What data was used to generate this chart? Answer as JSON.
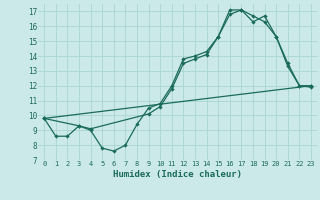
{
  "title": "",
  "xlabel": "Humidex (Indice chaleur)",
  "ylabel": "",
  "bg_color": "#cce9e9",
  "grid_color": "#aad4d4",
  "line_color": "#1a6b5a",
  "xlim": [
    -0.5,
    23.5
  ],
  "ylim": [
    7,
    17.5
  ],
  "yticks": [
    7,
    8,
    9,
    10,
    11,
    12,
    13,
    14,
    15,
    16,
    17
  ],
  "xticks": [
    0,
    1,
    2,
    3,
    4,
    5,
    6,
    7,
    8,
    9,
    10,
    11,
    12,
    13,
    14,
    15,
    16,
    17,
    18,
    19,
    20,
    21,
    22,
    23
  ],
  "line1_x": [
    0,
    1,
    2,
    3,
    4,
    5,
    6,
    7,
    8,
    9,
    10,
    11,
    12,
    13,
    14,
    15,
    16,
    17,
    18,
    19,
    20,
    21,
    22,
    23
  ],
  "line1_y": [
    9.8,
    8.6,
    8.6,
    9.3,
    9.0,
    7.8,
    7.6,
    8.0,
    9.4,
    10.5,
    10.8,
    12.0,
    13.8,
    14.0,
    14.3,
    15.3,
    17.1,
    17.1,
    16.3,
    16.7,
    15.3,
    13.3,
    12.0,
    12.0
  ],
  "line2_x": [
    0,
    3,
    4,
    9,
    10,
    11,
    12,
    13,
    14,
    15,
    16,
    17,
    18,
    19,
    20,
    21,
    22,
    23
  ],
  "line2_y": [
    9.8,
    9.3,
    9.1,
    10.1,
    10.6,
    11.8,
    13.5,
    13.8,
    14.1,
    15.3,
    16.8,
    17.1,
    16.7,
    16.3,
    15.3,
    13.5,
    12.0,
    11.9
  ],
  "line3_x": [
    0,
    23
  ],
  "line3_y": [
    9.8,
    12.0
  ]
}
